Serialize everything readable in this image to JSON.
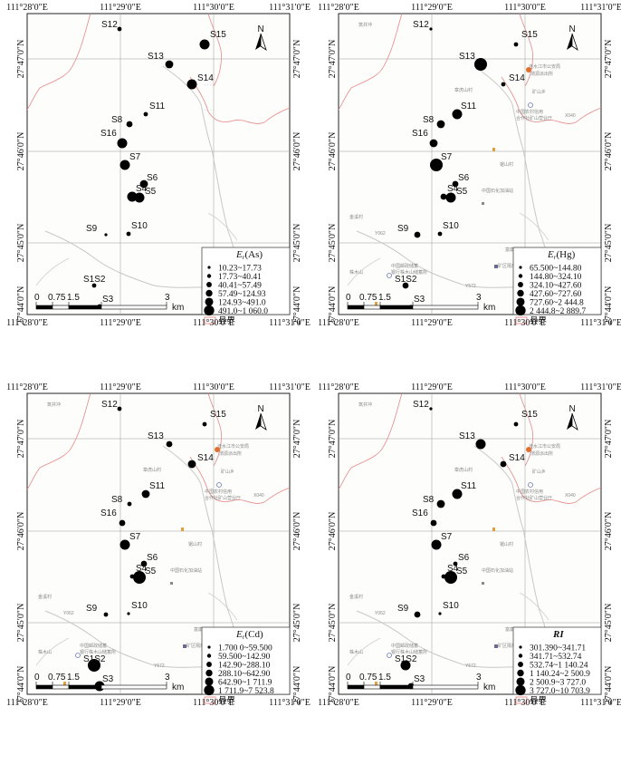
{
  "coords": {
    "top": [
      "111°28′0″E",
      "111°29′0″E",
      "111°30′0″E",
      "111°31′0″E"
    ],
    "left": [
      "27°47′0″N",
      "27°46′0″N",
      "27°45′0″N",
      "27°44′0″N"
    ]
  },
  "scale": {
    "ticks": [
      "0",
      "0.75",
      "1.5",
      "3"
    ],
    "unit": "km"
  },
  "north_label": "N",
  "boundary_label": "县界",
  "places": {
    "zhuangjing": "筑井冲",
    "police": "涟水江市公安局",
    "police2": "渭源派出所",
    "township": "矿山乡",
    "zhangmu": "章虎山村",
    "bank": "中国农村信用",
    "bank2": "合作社矿山营业厅",
    "xiuxiu": "锯山村",
    "plant": "中国石化加油站",
    "fumin": "富康村",
    "jinxi": "金溪村",
    "sheshan": "株木山",
    "mine": "矿区隔离区",
    "cnbank": "中国邮政储蓄",
    "cnbank2": "银行株木山储蓄所",
    "y062": "Y062",
    "y572": "Y572",
    "x040": "X040",
    "shanglao": "上老"
  },
  "panels": [
    {
      "id": "As",
      "title": "Er(As)",
      "legend": [
        "10.23~17.73",
        "17.73~40.41",
        "40.41~57.49",
        "57.49~124.93",
        "124.93~491.0",
        "491.0~1 060.0"
      ],
      "sample_sizes": {
        "S12": 1,
        "S15": 4,
        "S13": 3,
        "S14": 4,
        "S11": 1,
        "S8": 2,
        "S16": 4,
        "S7": 4,
        "S6": 3,
        "S4": 4,
        "S5": 4,
        "S9": 0,
        "S10": 1,
        "S1S2": 1,
        "S3": 1
      }
    },
    {
      "id": "Hg",
      "title": "Er(Hg)",
      "legend": [
        "65.500~144.80",
        "144.80~324.10",
        "324.10~427.60",
        "427.60~727.60",
        "727.60~2 444.8",
        "2 444.8~2 889.7"
      ],
      "sample_sizes": {
        "S12": 0,
        "S15": 1,
        "S13": 5,
        "S14": 1,
        "S11": 4,
        "S8": 3,
        "S16": 3,
        "S7": 5,
        "S6": 2,
        "S4": 2,
        "S5": 4,
        "S9": 2,
        "S10": 1,
        "S1S2": 2,
        "S3": 0
      }
    },
    {
      "id": "Cd",
      "title": "Er(Cd)",
      "legend": [
        "1.700 0~59.500",
        "59.500~142.90",
        "142.90~288.10",
        "288.10~642.90",
        "642.90~1 711.9",
        "1 711.9~7 523.8"
      ],
      "sample_sizes": {
        "S12": 1,
        "S15": 1,
        "S13": 2,
        "S14": 3,
        "S11": 3,
        "S8": 1,
        "S16": 2,
        "S7": 4,
        "S6": 2,
        "S4": 1,
        "S5": 5,
        "S9": 1,
        "S10": 0,
        "S1S2": 5,
        "S3": 4
      }
    },
    {
      "id": "RI",
      "title": "RI",
      "legend": [
        "301.390~341.71",
        "341.71~532.74",
        "532.74~1 140.24",
        "1 140.24~2 500.9",
        "2 500.9~3 727.0",
        "3 727.0~10 703.9"
      ],
      "sample_sizes": {
        "S12": 0,
        "S15": 1,
        "S13": 4,
        "S14": 2,
        "S11": 4,
        "S8": 3,
        "S16": 2,
        "S7": 4,
        "S6": 1,
        "S4": 1,
        "S5": 5,
        "S9": 2,
        "S10": 0,
        "S1S2": 4,
        "S3": 2
      }
    }
  ]
}
